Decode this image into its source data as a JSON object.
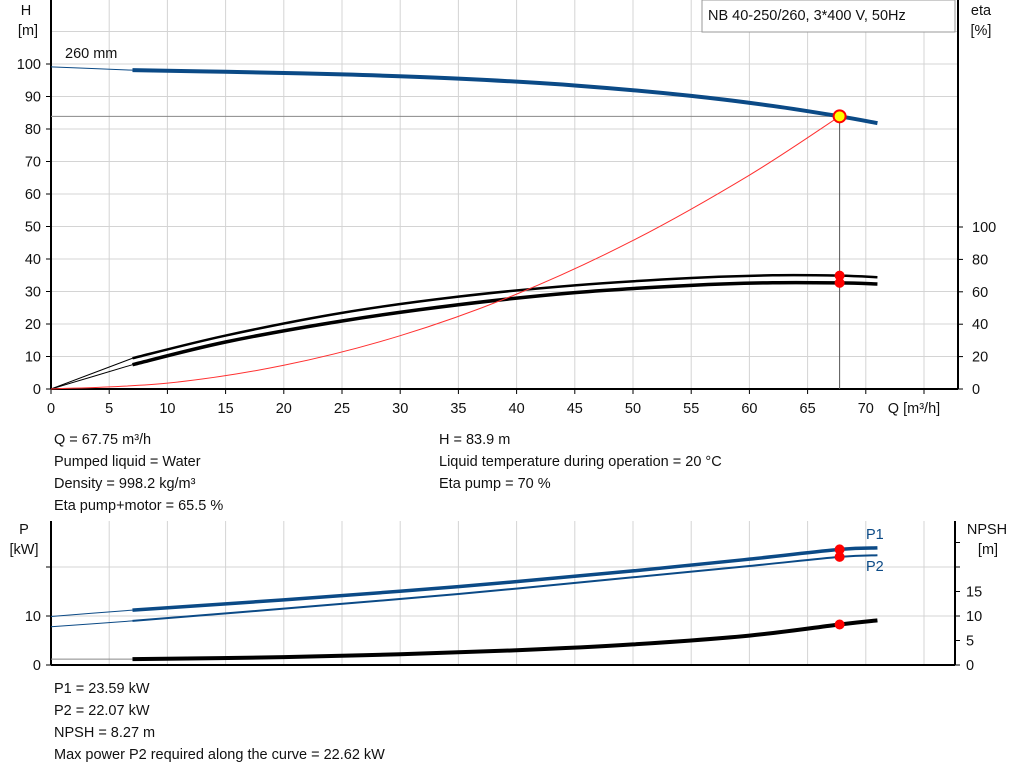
{
  "title_box": "NB 40-250/260, 3*400 V, 50Hz",
  "chart_data": [
    {
      "type": "line",
      "title": "NB 40-250/260, 3*400 V, 50Hz",
      "xlabel": "Q [m³/h]",
      "ylabel": "H\n[m]",
      "y2label": "eta\n[%]",
      "xlim": [
        0,
        78
      ],
      "ylim": [
        0,
        120
      ],
      "y2lim": [
        0,
        100
      ],
      "xticks": [
        0,
        5,
        10,
        15,
        20,
        25,
        30,
        35,
        40,
        45,
        50,
        55,
        60,
        65,
        70
      ],
      "yticks": [
        0,
        10,
        20,
        30,
        40,
        50,
        60,
        70,
        80,
        90,
        100
      ],
      "y2ticks": [
        0,
        20,
        40,
        60,
        80,
        100
      ],
      "grid": true,
      "curve_label": "260 mm",
      "series": [
        {
          "axis": "H",
          "color": "#0b4a86",
          "x": [
            0,
            7,
            15,
            25,
            35,
            45,
            55,
            62,
            67.75,
            71
          ],
          "y": [
            99.1,
            98.1,
            97.6,
            96.8,
            95.5,
            93.4,
            90.2,
            87.1,
            83.9,
            81.8
          ]
        },
        {
          "axis": "eta",
          "color": "#000000",
          "x": [
            0,
            7,
            15,
            25,
            35,
            45,
            55,
            62,
            67.75,
            71
          ],
          "y": [
            0,
            19,
            33,
            47,
            57,
            64,
            68.5,
            70.2,
            70,
            69
          ]
        },
        {
          "axis": "eta",
          "color": "#000000",
          "x": [
            0,
            7,
            15,
            25,
            35,
            45,
            55,
            62,
            67.75,
            71
          ],
          "y": [
            0,
            15,
            29,
            42,
            52,
            59.5,
            64,
            65.6,
            65.5,
            64.8
          ]
        },
        {
          "axis": "H",
          "color": "#ff3030",
          "x": [
            0,
            10,
            20,
            30,
            40,
            50,
            60,
            67.75
          ],
          "y": [
            0,
            1.8,
            7.3,
            16.4,
            29.2,
            45.7,
            65.8,
            83.9
          ]
        }
      ],
      "duty_point": {
        "Q": 67.75,
        "H": 83.9,
        "eta_pump": 70,
        "eta_total": 65.5
      }
    },
    {
      "type": "line",
      "ylabel": "P\n[kW]",
      "y2label": "NPSH\n[m]",
      "xlim": [
        0,
        78
      ],
      "ylim": [
        0,
        30
      ],
      "y2lim": [
        0,
        30
      ],
      "yticks": [
        0,
        10
      ],
      "y2ticks": [
        0,
        5,
        10,
        15
      ],
      "grid": true,
      "series": [
        {
          "name": "P1",
          "color": "#0b4a86",
          "x": [
            0,
            7,
            20,
            35,
            50,
            60,
            67.75,
            71
          ],
          "y": [
            9.9,
            11.2,
            13.3,
            16,
            19.2,
            21.6,
            23.59,
            23.9
          ]
        },
        {
          "name": "P2",
          "color": "#0b4a86",
          "x": [
            0,
            7,
            20,
            35,
            50,
            60,
            67.75,
            71
          ],
          "y": [
            7.8,
            9.0,
            11.5,
            14.5,
            17.9,
            20.2,
            22.07,
            22.4
          ]
        },
        {
          "axis": "NPSH",
          "color": "#000000",
          "x": [
            0,
            7,
            20,
            30,
            40,
            50,
            60,
            67.75,
            71
          ],
          "y": [
            1.2,
            1.2,
            1.6,
            2.2,
            3.0,
            4.2,
            6.0,
            8.27,
            9.1
          ]
        }
      ]
    }
  ],
  "info_top": {
    "left": [
      "Q = 67.75 m³/h",
      "Pumped liquid = Water",
      "Density = 998.2 kg/m³",
      "Eta pump+motor = 65.5 %"
    ],
    "right": [
      "H = 83.9 m",
      "Liquid temperature during operation = 20 °C",
      "Eta pump = 70 %"
    ]
  },
  "info_bottom": [
    "P1 = 23.59 kW",
    "P2 = 22.07 kW",
    "NPSH = 8.27 m",
    "Max power P2 required along the curve = 22.62 kW"
  ]
}
